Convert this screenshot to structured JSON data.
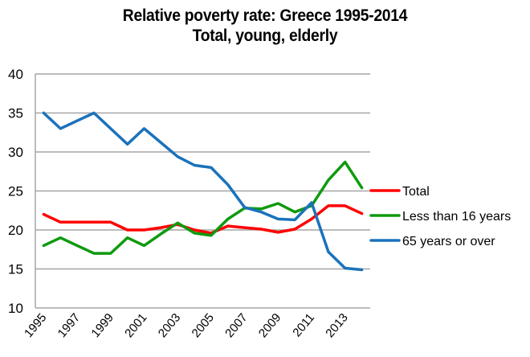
{
  "chart_data": {
    "type": "line",
    "title": "Relative poverty rate: Greece 1995-2014",
    "subtitle": "Total, young, elderly",
    "xlabel": "",
    "ylabel": "",
    "ylim": [
      10,
      40
    ],
    "yticks": [
      10,
      15,
      20,
      25,
      30,
      35,
      40
    ],
    "x": [
      1995,
      1996,
      1997,
      1998,
      1999,
      2000,
      2001,
      2002,
      2003,
      2004,
      2005,
      2006,
      2007,
      2008,
      2009,
      2010,
      2011,
      2012,
      2013,
      2014
    ],
    "xtick_labels": [
      "1995",
      "1997",
      "1999",
      "2001",
      "2003",
      "2005",
      "2007",
      "2009",
      "2011",
      "2013"
    ],
    "grid": "horizontal",
    "legend_position": "right",
    "series": [
      {
        "name": "Total",
        "color": "#ff0000",
        "values": [
          22,
          21,
          21,
          21,
          21,
          20,
          20,
          20.3,
          20.7,
          20,
          19.6,
          20.5,
          20.3,
          20.1,
          19.7,
          20.1,
          21.4,
          23.1,
          23.1,
          22.1
        ]
      },
      {
        "name": "Less than 16 years",
        "color": "#0f9a0f",
        "values": [
          18,
          19,
          18,
          17,
          17,
          19,
          18,
          19.5,
          20.9,
          19.6,
          19.3,
          21.4,
          22.8,
          22.7,
          23.4,
          22.3,
          23.1,
          26.4,
          28.7,
          25.4
        ]
      },
      {
        "name": "65 years or over",
        "color": "#1a72bb",
        "values": [
          35,
          33,
          34,
          35,
          33,
          31,
          33,
          31.2,
          29.4,
          28.3,
          28,
          25.8,
          22.9,
          22.3,
          21.4,
          21.3,
          23.5,
          17.2,
          15.1,
          14.9
        ]
      }
    ]
  }
}
